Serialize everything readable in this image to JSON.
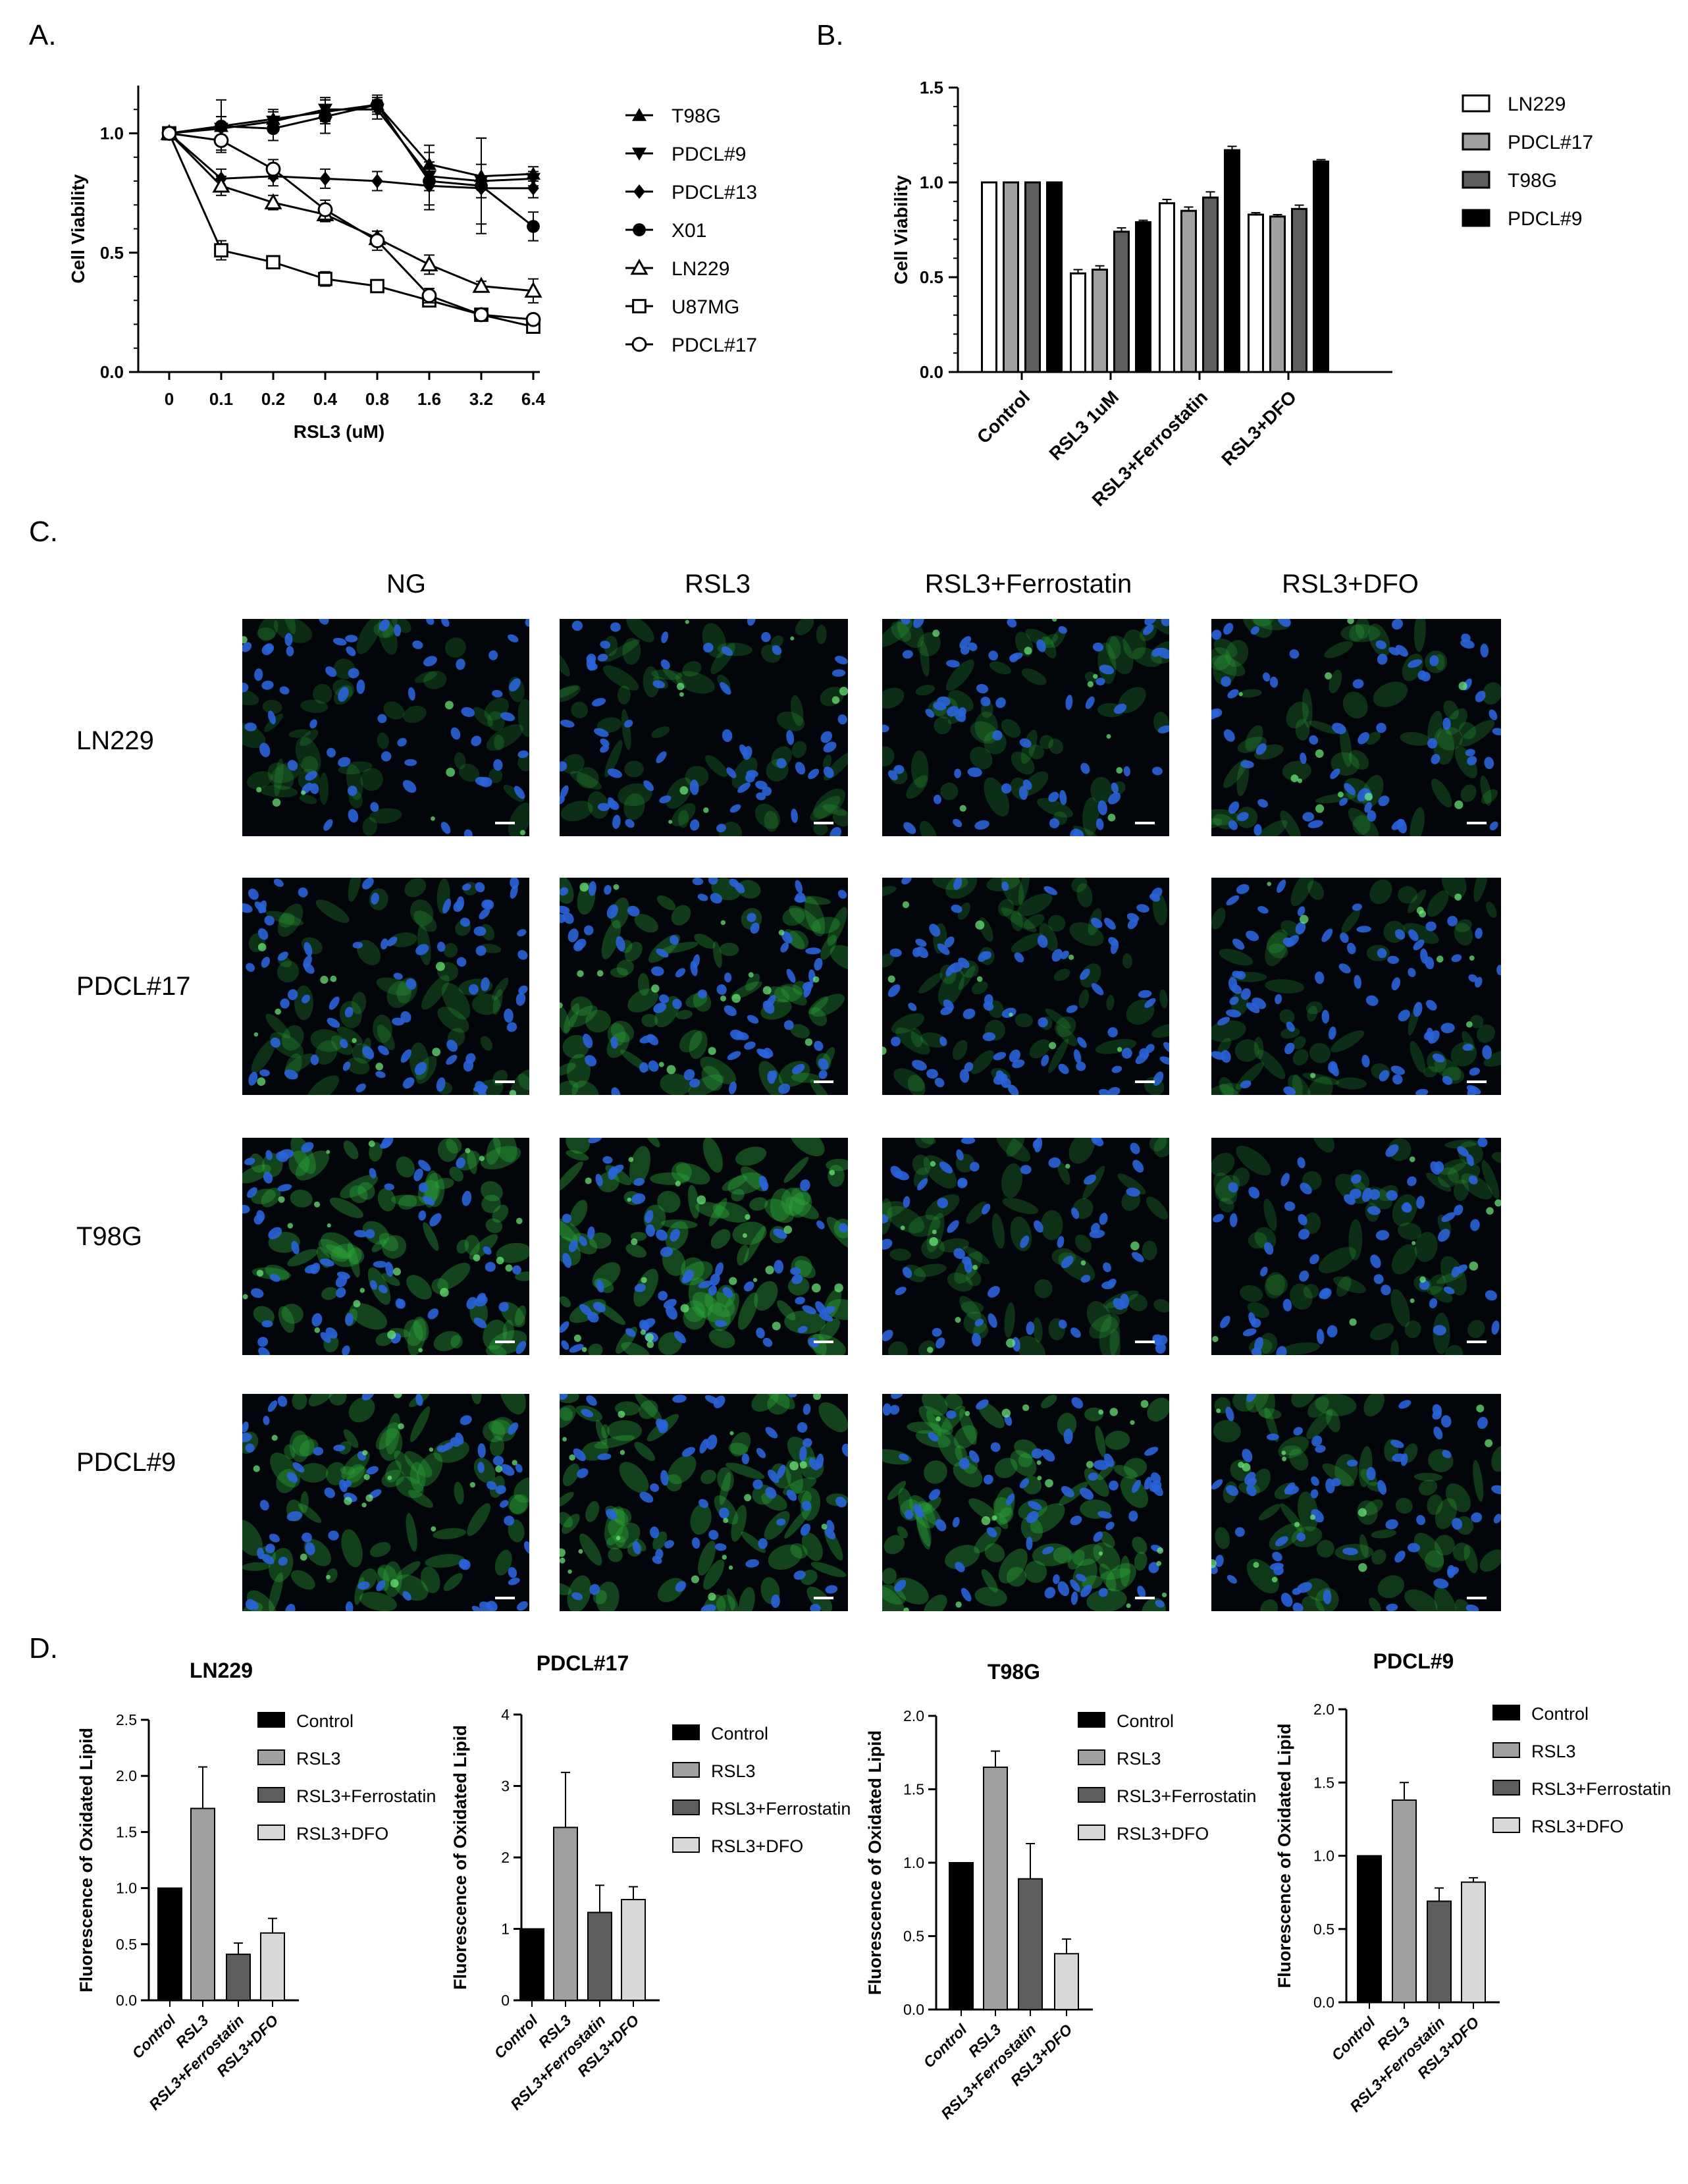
{
  "panels": {
    "a": "A.",
    "b": "B.",
    "c": "C.",
    "d": "D."
  },
  "chart_data": [
    {
      "id": "A",
      "type": "line",
      "xlabel": "RSL3 (uM)",
      "ylabel": "Cell Viability",
      "categories": [
        "0",
        "0.1",
        "0.2",
        "0.4",
        "0.8",
        "1.6",
        "3.2",
        "6.4"
      ],
      "ylim": [
        0,
        1.2
      ],
      "yticks": [
        "0.0",
        "0.5",
        "1.0"
      ],
      "series": [
        {
          "name": "T98G",
          "marker": "triangle-up",
          "values": [
            1.0,
            1.03,
            1.06,
            1.09,
            1.12,
            0.87,
            0.82,
            0.83
          ],
          "err": [
            0,
            0.04,
            0.04,
            0.05,
            0.03,
            0.08,
            0.05,
            0.03
          ]
        },
        {
          "name": "PDCL#9",
          "marker": "triangle-down",
          "values": [
            1.0,
            1.02,
            1.05,
            1.1,
            1.1,
            0.82,
            0.8,
            0.81
          ],
          "err": [
            0,
            0.05,
            0.04,
            0.05,
            0.04,
            0.06,
            0.18,
            0.03
          ]
        },
        {
          "name": "PDCL#13",
          "marker": "diamond",
          "values": [
            1.0,
            0.81,
            0.82,
            0.81,
            0.8,
            0.78,
            0.77,
            0.77
          ],
          "err": [
            0,
            0.04,
            0.04,
            0.04,
            0.04,
            0.08,
            0.04,
            0.04
          ]
        },
        {
          "name": "X01",
          "marker": "circle-filled",
          "values": [
            1.0,
            1.03,
            1.02,
            1.07,
            1.12,
            0.8,
            0.78,
            0.61
          ],
          "err": [
            0,
            0.11,
            0.05,
            0.07,
            0.04,
            0.12,
            0.2,
            0.06
          ]
        },
        {
          "name": "LN229",
          "marker": "triangle-open",
          "values": [
            1.0,
            0.78,
            0.71,
            0.66,
            0.56,
            0.45,
            0.36,
            0.34
          ],
          "err": [
            0,
            0.04,
            0.03,
            0.03,
            0.03,
            0.04,
            0.02,
            0.05
          ]
        },
        {
          "name": "U87MG",
          "marker": "square-open",
          "values": [
            1.0,
            0.51,
            0.46,
            0.39,
            0.36,
            0.3,
            0.24,
            0.19
          ],
          "err": [
            0,
            0.04,
            0.02,
            0.03,
            0.02,
            0.02,
            0.02,
            0.02
          ]
        },
        {
          "name": "PDCL#17",
          "marker": "circle-open",
          "values": [
            1.0,
            0.97,
            0.85,
            0.68,
            0.55,
            0.32,
            0.24,
            0.22
          ],
          "err": [
            0,
            0.04,
            0.04,
            0.04,
            0.04,
            0.03,
            0.02,
            0.02
          ]
        }
      ]
    },
    {
      "id": "B",
      "type": "bar",
      "ylabel": "Cell Viability",
      "categories": [
        "Control",
        "RSL3 1uM",
        "RSL3+Ferrostatin",
        "RSL3+DFO"
      ],
      "ylim": [
        0,
        1.5
      ],
      "yticks": [
        "0.0",
        "0.5",
        "1.0",
        "1.5"
      ],
      "series": [
        {
          "name": "LN229",
          "color": "#ffffff",
          "values": [
            1.0,
            0.52,
            0.89,
            0.83
          ],
          "err": [
            0,
            0.02,
            0.02,
            0.01
          ]
        },
        {
          "name": "PDCL#17",
          "color": "#a0a0a0",
          "values": [
            1.0,
            0.54,
            0.85,
            0.82
          ],
          "err": [
            0,
            0.02,
            0.02,
            0.01
          ]
        },
        {
          "name": "T98G",
          "color": "#5e5e5e",
          "values": [
            1.0,
            0.74,
            0.92,
            0.86
          ],
          "err": [
            0,
            0.02,
            0.03,
            0.02
          ]
        },
        {
          "name": "PDCL#9",
          "color": "#000000",
          "values": [
            1.0,
            0.79,
            1.17,
            1.11
          ],
          "err": [
            0,
            0.01,
            0.02,
            0.01
          ]
        }
      ]
    },
    {
      "id": "D1",
      "type": "bar",
      "title": "LN229",
      "ylabel": "Fluorescence of Oxidated Lipid",
      "categories": [
        "Control",
        "RSL3",
        "RSL3+Ferrostatin",
        "RSL3+DFO"
      ],
      "ylim": [
        0,
        2.5
      ],
      "yticks": [
        "0.0",
        "0.5",
        "1.0",
        "1.5",
        "2.0",
        "2.5"
      ],
      "values": [
        1.0,
        1.71,
        0.41,
        0.6
      ],
      "err": [
        0,
        0.37,
        0.1,
        0.13
      ]
    },
    {
      "id": "D2",
      "type": "bar",
      "title": "PDCL#17",
      "ylabel": "Fluorescence of Oxidated Lipid",
      "categories": [
        "Control",
        "RSL3",
        "RSL3+Ferrostatin",
        "RSL3+DFO"
      ],
      "ylim": [
        0,
        4
      ],
      "yticks": [
        "0",
        "1",
        "2",
        "3",
        "4"
      ],
      "values": [
        1.0,
        2.42,
        1.23,
        1.41
      ],
      "err": [
        0,
        0.77,
        0.38,
        0.18
      ]
    },
    {
      "id": "D3",
      "type": "bar",
      "title": "T98G",
      "ylabel": "Fluorescence of Oxidated Lipid",
      "categories": [
        "Control",
        "RSL3",
        "RSL3+Ferrostatin",
        "RSL3+DFO"
      ],
      "ylim": [
        0,
        2.0
      ],
      "yticks": [
        "0.0",
        "0.5",
        "1.0",
        "1.5",
        "2.0"
      ],
      "values": [
        1.0,
        1.65,
        0.89,
        0.38
      ],
      "err": [
        0,
        0.11,
        0.24,
        0.1
      ]
    },
    {
      "id": "D4",
      "type": "bar",
      "title": "PDCL#9",
      "ylabel": "Fluorescence of Oxidated Lipid",
      "categories": [
        "Control",
        "RSL3",
        "RSL3+Ferrostatin",
        "RSL3+DFO"
      ],
      "ylim": [
        0,
        2.0
      ],
      "yticks": [
        "0.0",
        "0.5",
        "1.0",
        "1.5",
        "2.0"
      ],
      "values": [
        1.0,
        1.38,
        0.69,
        0.82
      ],
      "err": [
        0,
        0.12,
        0.09,
        0.03
      ]
    }
  ],
  "d_legend": [
    {
      "name": "Control",
      "color": "#000000"
    },
    {
      "name": "RSL3",
      "color": "#a0a0a0"
    },
    {
      "name": "RSL3+Ferrostatin",
      "color": "#5e5e5e"
    },
    {
      "name": "RSL3+DFO",
      "color": "#d8d8d8"
    }
  ],
  "microscopy": {
    "columns": [
      "NG",
      "RSL3",
      "RSL3+Ferrostatin",
      "RSL3+DFO"
    ],
    "rows": [
      "LN229",
      "PDCL#17",
      "T98G",
      "PDCL#9"
    ],
    "green_intensity": [
      [
        0.25,
        0.3,
        0.3,
        0.35
      ],
      [
        0.35,
        0.55,
        0.3,
        0.3
      ],
      [
        0.7,
        0.75,
        0.35,
        0.3
      ],
      [
        0.6,
        0.65,
        0.7,
        0.45
      ]
    ]
  }
}
